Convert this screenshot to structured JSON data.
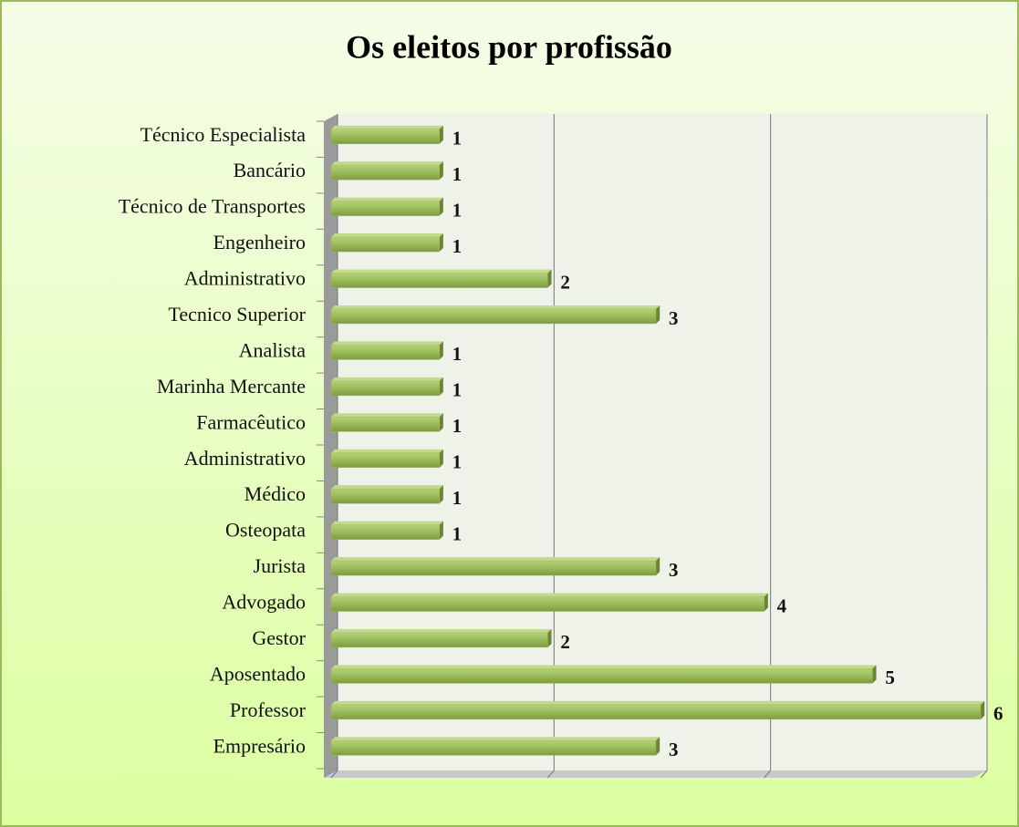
{
  "chart_data": {
    "type": "bar",
    "orientation": "horizontal",
    "title": "Os eleitos por profissão",
    "categories": [
      "Técnico Especialista",
      "Bancário",
      "Técnico de Transportes",
      "Engenheiro",
      "Administrativo",
      "Tecnico Superior",
      "Analista",
      "Marinha Mercante",
      "Farmacêutico",
      "Administrativo",
      "Médico",
      "Osteopata",
      "Jurista",
      "Advogado",
      "Gestor",
      "Aposentado",
      "Professor",
      "Empresário"
    ],
    "values": [
      1,
      1,
      1,
      1,
      2,
      3,
      1,
      1,
      1,
      1,
      1,
      1,
      3,
      4,
      2,
      5,
      6,
      3
    ],
    "color": "#9bbb59",
    "xlim": [
      0,
      6
    ],
    "xticks": [
      0,
      2,
      4,
      6
    ],
    "grid": true
  }
}
